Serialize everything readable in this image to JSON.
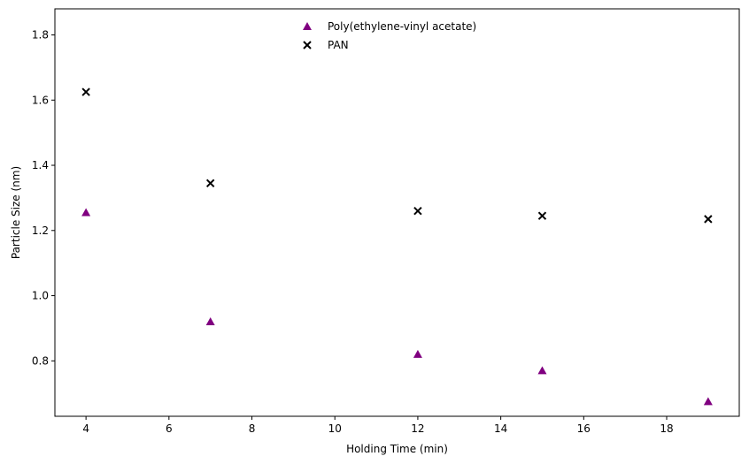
{
  "chart_data": {
    "type": "scatter",
    "xlabel": "Holding Time (min)",
    "ylabel": "Particle Size (nm)",
    "xlim": [
      3.25,
      19.75
    ],
    "ylim": [
      0.63,
      1.88
    ],
    "xticks": [
      4,
      6,
      8,
      10,
      12,
      14,
      16,
      18
    ],
    "yticks": [
      0.8,
      1.0,
      1.2,
      1.4,
      1.6,
      1.8
    ],
    "legend_position": "top-center",
    "grid": false,
    "series": [
      {
        "name": "Poly(ethylene-vinyl acetate)",
        "marker": "triangle",
        "color": "#800080",
        "x": [
          4,
          7,
          12,
          15,
          19
        ],
        "y": [
          1.255,
          0.92,
          0.82,
          0.77,
          0.675
        ]
      },
      {
        "name": "PAN",
        "marker": "x",
        "color": "#000000",
        "x": [
          4,
          7,
          12,
          15,
          19
        ],
        "y": [
          1.625,
          1.345,
          1.26,
          1.245,
          1.235
        ]
      }
    ]
  }
}
